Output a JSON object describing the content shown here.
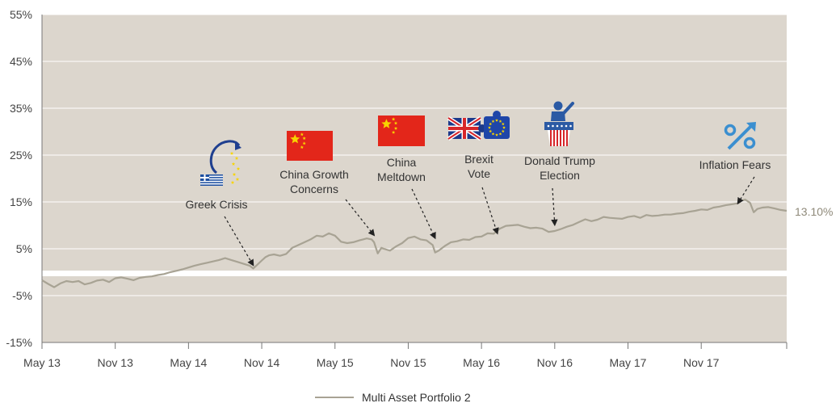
{
  "chart_data": {
    "type": "line",
    "title": "",
    "xlabel": "",
    "ylabel": "",
    "ylim": [
      -15,
      55
    ],
    "yticks": [
      -15,
      -5,
      5,
      15,
      25,
      35,
      45,
      55
    ],
    "ytick_labels": [
      "-15%",
      "-5%",
      "5%",
      "15%",
      "25%",
      "35%",
      "45%",
      "55%"
    ],
    "xlim": [
      0,
      61
    ],
    "xticks": [
      0,
      6,
      12,
      18,
      24,
      30,
      36,
      42,
      48,
      54
    ],
    "xtick_labels": [
      "May 13",
      "Nov 13",
      "May 14",
      "Nov 14",
      "May 15",
      "Nov 15",
      "May 16",
      "Nov 16",
      "May 17",
      "Nov 17"
    ],
    "grid": true,
    "legend_position": "bottom",
    "series": [
      {
        "name": "Multi Asset Portfolio 2",
        "color": "#a8a394",
        "x": [
          0,
          0.5,
          1,
          1.5,
          2,
          2.5,
          3,
          3.5,
          4,
          4.5,
          5,
          5.5,
          6,
          6.5,
          7,
          7.5,
          8,
          8.5,
          9,
          9.5,
          10,
          10.5,
          11,
          11.5,
          12,
          12.5,
          13,
          13.5,
          14,
          14.5,
          15,
          15.5,
          16,
          16.5,
          17,
          17.3,
          17.6,
          18,
          18.3,
          18.6,
          19,
          19.5,
          20,
          20.5,
          21,
          21.5,
          22,
          22.5,
          23,
          23.5,
          24,
          24.5,
          25,
          25.5,
          26,
          26.3,
          26.6,
          27,
          27.2,
          27.5,
          27.8,
          28,
          28.5,
          29,
          29.5,
          30,
          30.5,
          31,
          31.5,
          32,
          32.2,
          32.5,
          33,
          33.5,
          34,
          34.5,
          35,
          35.5,
          36,
          36.5,
          37,
          37.5,
          38,
          38.5,
          39,
          39.5,
          40,
          40.5,
          41,
          41.5,
          42,
          42.5,
          43,
          43.5,
          44,
          44.5,
          45,
          45.5,
          46,
          46.5,
          47,
          47.5,
          48,
          48.5,
          49,
          49.5,
          50,
          50.5,
          51,
          51.5,
          52,
          52.5,
          53,
          53.5,
          54,
          54.5,
          55,
          55.5,
          56,
          56.5,
          57,
          57.3,
          57.6,
          58,
          58.3,
          58.6,
          59,
          59.5,
          60,
          60.5,
          61
        ],
        "values": [
          -1.7,
          -2.5,
          -3.2,
          -2.4,
          -1.9,
          -2.1,
          -1.9,
          -2.6,
          -2.3,
          -1.8,
          -1.6,
          -2.1,
          -1.3,
          -1.1,
          -1.4,
          -1.7,
          -1.2,
          -1.0,
          -0.9,
          -0.6,
          -0.4,
          0.0,
          0.3,
          0.6,
          1.0,
          1.4,
          1.7,
          2.0,
          2.3,
          2.6,
          3.0,
          2.6,
          2.2,
          1.8,
          1.4,
          0.8,
          1.5,
          2.5,
          3.2,
          3.6,
          3.8,
          3.5,
          3.9,
          5.2,
          5.8,
          6.4,
          7.0,
          7.8,
          7.6,
          8.3,
          7.8,
          6.5,
          6.2,
          6.4,
          6.8,
          7.0,
          7.2,
          7.0,
          6.4,
          4.0,
          5.2,
          5.0,
          4.6,
          5.5,
          6.2,
          7.3,
          7.6,
          7.0,
          6.8,
          5.8,
          4.2,
          4.6,
          5.6,
          6.4,
          6.6,
          7.0,
          6.9,
          7.5,
          7.6,
          8.3,
          8.2,
          9.3,
          9.9,
          10.0,
          10.1,
          9.7,
          9.4,
          9.5,
          9.3,
          8.6,
          8.8,
          9.2,
          9.7,
          10.1,
          10.7,
          11.3,
          10.9,
          11.2,
          11.8,
          11.6,
          11.5,
          11.4,
          11.8,
          12.0,
          11.6,
          12.2,
          12.0,
          12.1,
          12.3,
          12.3,
          12.5,
          12.6,
          12.9,
          13.1,
          13.4,
          13.3,
          13.8,
          14.0,
          14.3,
          14.5,
          14.7,
          15.3,
          15.5,
          14.8,
          12.8,
          13.5,
          13.8,
          13.9,
          13.6,
          13.3,
          13.1
        ]
      }
    ],
    "end_label": "13.10%",
    "annotations": [
      {
        "text": [
          "Greek Crisis"
        ],
        "icon": "greek-flag-drain-icon",
        "x": 17.3,
        "y": 0.8
      },
      {
        "text": [
          "China Growth",
          "Concerns"
        ],
        "icon": "china-flag-icon",
        "x": 27.2,
        "y": 7.2
      },
      {
        "text": [
          "China",
          "Meltdown"
        ],
        "icon": "china-flag-icon",
        "x": 32.2,
        "y": 6.6
      },
      {
        "text": [
          "Brexit",
          "Vote"
        ],
        "icon": "brexit-puzzle-icon",
        "x": 37.3,
        "y": 7.6
      },
      {
        "text": [
          "Donald Trump",
          "Election"
        ],
        "icon": "us-podium-icon",
        "x": 42.0,
        "y": 9.4
      },
      {
        "text": [
          "Inflation Fears"
        ],
        "icon": "inflation-percent-icon",
        "x": 57.0,
        "y": 14.0
      }
    ]
  }
}
